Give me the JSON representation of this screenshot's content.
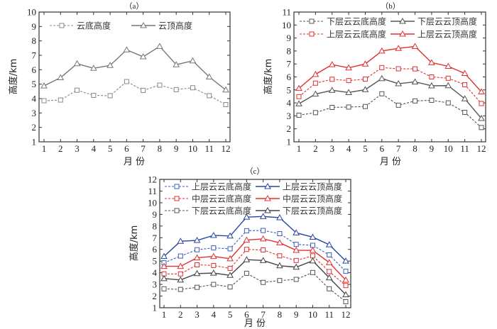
{
  "chart_data": [
    {
      "id": "a",
      "type": "line",
      "title": "（a）",
      "xlabel": "月 份",
      "ylabel": "高度/km",
      "x": [
        1,
        2,
        3,
        4,
        5,
        6,
        7,
        8,
        9,
        10,
        11,
        12
      ],
      "xlim": [
        1,
        12
      ],
      "ylim": [
        1,
        10
      ],
      "yticks": [
        1,
        2,
        3,
        4,
        5,
        6,
        7,
        8,
        9,
        10
      ],
      "grid": false,
      "legend_position": "top-left",
      "series": [
        {
          "name": "云底高度",
          "color": "#888888",
          "dash": true,
          "marker": "square",
          "values": [
            3.85,
            3.9,
            4.58,
            4.22,
            4.2,
            5.18,
            4.57,
            4.93,
            4.62,
            4.75,
            4.2,
            3.58
          ]
        },
        {
          "name": "云顶高度",
          "color": "#777777",
          "dash": false,
          "marker": "triangle",
          "values": [
            4.88,
            5.45,
            6.42,
            6.1,
            6.3,
            7.38,
            6.9,
            7.62,
            6.35,
            6.62,
            5.5,
            4.6
          ]
        }
      ]
    },
    {
      "id": "b",
      "type": "line",
      "title": "（b）",
      "xlabel": "月 份",
      "ylabel": "高度/km",
      "x": [
        1,
        2,
        3,
        4,
        5,
        6,
        7,
        8,
        9,
        10,
        11,
        12
      ],
      "xlim": [
        1,
        12
      ],
      "ylim": [
        1,
        11
      ],
      "yticks": [
        1,
        2,
        3,
        4,
        5,
        6,
        7,
        8,
        9,
        10,
        11
      ],
      "grid": false,
      "legend_position": "top",
      "series": [
        {
          "name": "下层云云底高度",
          "color": "#555555",
          "dash": true,
          "marker": "square",
          "values": [
            3.05,
            3.25,
            3.65,
            3.68,
            3.72,
            4.7,
            3.82,
            4.15,
            4.2,
            4.0,
            3.27,
            2.1
          ]
        },
        {
          "name": "下层云云顶高度",
          "color": "#555555",
          "dash": false,
          "marker": "triangle",
          "values": [
            3.93,
            4.68,
            4.97,
            4.8,
            5.02,
            5.88,
            5.48,
            5.62,
            5.32,
            5.33,
            4.32,
            2.8
          ]
        },
        {
          "name": "上层云云底高度",
          "color": "#e03030",
          "dash": true,
          "marker": "square",
          "values": [
            4.48,
            5.52,
            5.82,
            5.72,
            5.83,
            6.72,
            6.63,
            6.62,
            6.0,
            5.9,
            5.4,
            3.95
          ]
        },
        {
          "name": "上层云云顶高度",
          "color": "#e03030",
          "dash": false,
          "marker": "triangle",
          "values": [
            5.12,
            6.2,
            6.95,
            6.7,
            7.0,
            8.0,
            8.2,
            8.35,
            7.1,
            6.82,
            6.27,
            4.85
          ]
        }
      ]
    },
    {
      "id": "c",
      "type": "line",
      "title": "（c）",
      "xlabel": "月 份",
      "ylabel": "高度/km",
      "x": [
        1,
        2,
        3,
        4,
        5,
        6,
        7,
        8,
        9,
        10,
        11,
        12
      ],
      "xlim": [
        1,
        12
      ],
      "ylim": [
        1,
        12
      ],
      "yticks": [
        1,
        2,
        3,
        4,
        5,
        6,
        7,
        8,
        9,
        10,
        11,
        12
      ],
      "grid": false,
      "legend_position": "top",
      "series": [
        {
          "name": "上层云云底高度",
          "color": "#3a5fb8",
          "dash": true,
          "marker": "square",
          "values": [
            4.85,
            5.43,
            5.97,
            6.13,
            6.05,
            7.6,
            7.62,
            7.35,
            6.43,
            6.35,
            5.53,
            4.12
          ]
        },
        {
          "name": "上层云云顶高度",
          "color": "#2846a0",
          "dash": false,
          "marker": "triangle",
          "values": [
            5.4,
            6.7,
            6.77,
            7.2,
            7.15,
            8.77,
            8.82,
            8.72,
            7.42,
            7.05,
            6.4,
            5.0
          ]
        },
        {
          "name": "中层云云底高度",
          "color": "#e03030",
          "dash": true,
          "marker": "square",
          "values": [
            3.9,
            3.9,
            4.68,
            4.62,
            4.37,
            6.0,
            5.95,
            5.45,
            5.05,
            5.45,
            4.1,
            2.9
          ]
        },
        {
          "name": "中层云云顶高度",
          "color": "#e03030",
          "dash": false,
          "marker": "triangle",
          "values": [
            4.55,
            4.55,
            5.28,
            5.4,
            5.2,
            6.8,
            6.9,
            6.57,
            5.92,
            5.92,
            4.87,
            3.37
          ]
        },
        {
          "name": "下层云云底高度",
          "color": "#555555",
          "dash": true,
          "marker": "square",
          "values": [
            2.62,
            2.57,
            2.75,
            3.0,
            2.78,
            3.95,
            3.17,
            3.33,
            3.43,
            4.02,
            2.62,
            1.52
          ]
        },
        {
          "name": "下层云云顶高度",
          "color": "#444444",
          "dash": false,
          "marker": "triangle",
          "values": [
            3.5,
            3.38,
            3.93,
            3.97,
            3.78,
            5.12,
            5.05,
            4.6,
            4.48,
            5.02,
            3.57,
            2.12
          ]
        }
      ]
    }
  ]
}
